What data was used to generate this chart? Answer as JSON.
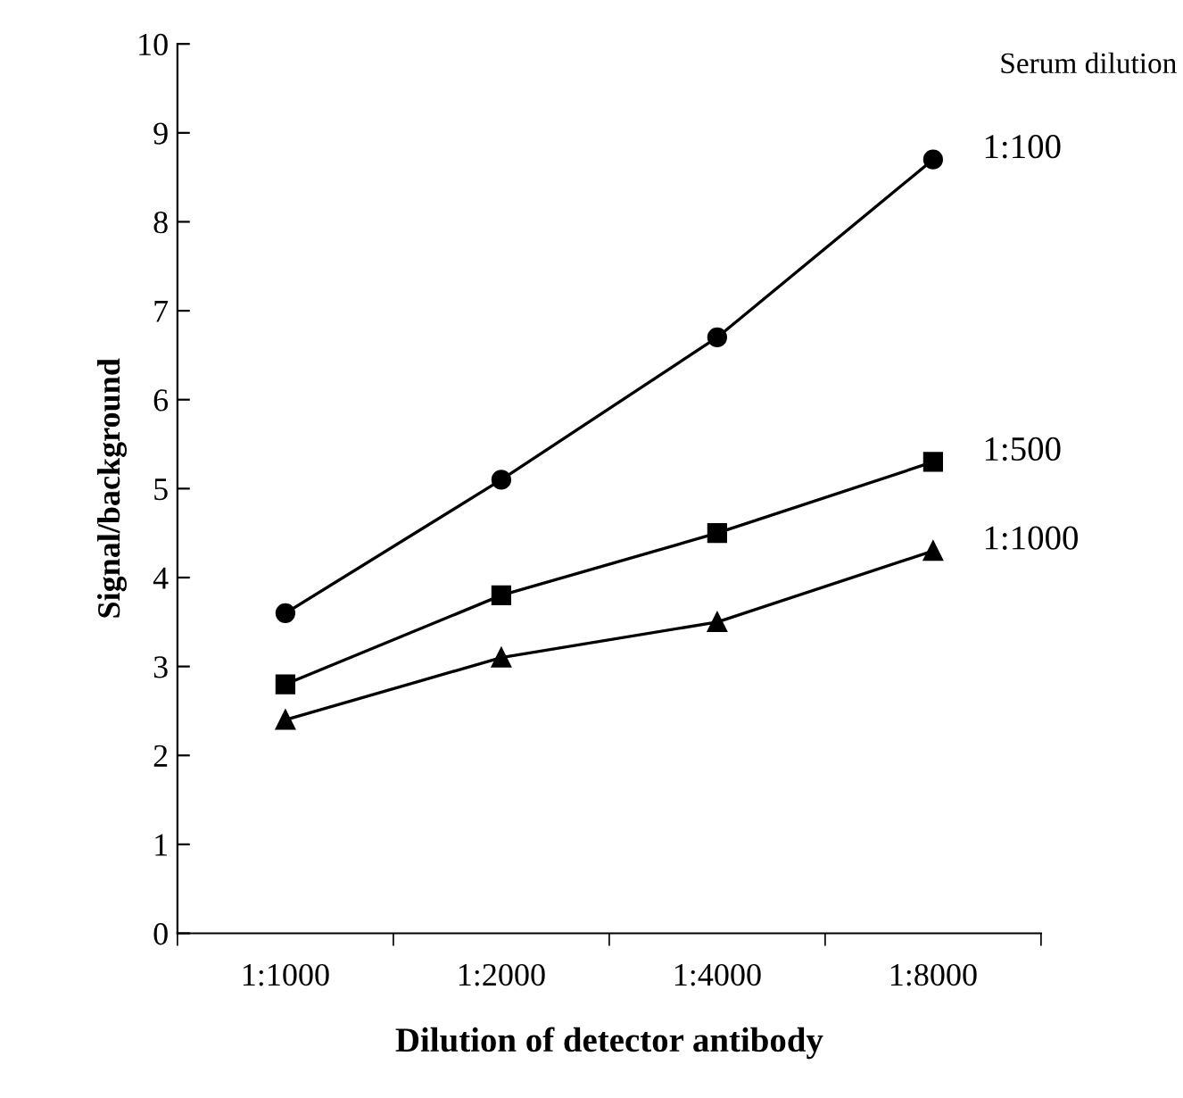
{
  "chart_data": {
    "type": "line",
    "xlabel": "Dilution of detector antibody",
    "ylabel": "Signal/background",
    "legend_title": "Serum dilution",
    "categories": [
      "1:1000",
      "1:2000",
      "1:4000",
      "1:8000"
    ],
    "series": [
      {
        "name": "1:100",
        "color": "#000000",
        "marker": "circle",
        "values": [
          3.6,
          5.1,
          6.7,
          8.7
        ]
      },
      {
        "name": "1:500",
        "color": "#000000",
        "marker": "square",
        "values": [
          2.8,
          3.8,
          4.5,
          5.3
        ]
      },
      {
        "name": "1:1000",
        "color": "#000000",
        "marker": "triangle",
        "values": [
          2.4,
          3.1,
          3.5,
          4.3
        ]
      }
    ],
    "ylim": [
      0,
      10
    ],
    "yticks": [
      0,
      1,
      2,
      3,
      4,
      5,
      6,
      7,
      8,
      9,
      10
    ],
    "grid": false,
    "legend": false,
    "line_style": "solid"
  }
}
